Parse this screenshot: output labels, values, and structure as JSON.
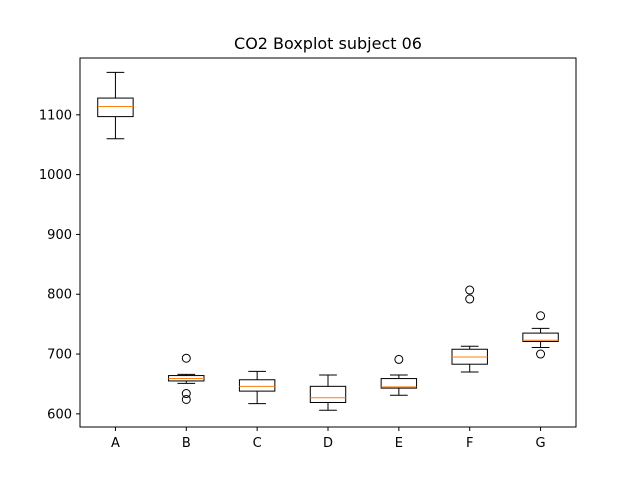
{
  "chart_data": {
    "type": "boxplot",
    "title": "CO2 Boxplot subject 06",
    "xlabel": "",
    "ylabel": "",
    "ylim": [
      578,
      1195
    ],
    "yticks": [
      600,
      700,
      800,
      900,
      1000,
      1100
    ],
    "categories": [
      "A",
      "B",
      "C",
      "D",
      "E",
      "F",
      "G"
    ],
    "boxes": [
      {
        "label": "A",
        "whisker_low": 1060,
        "q1": 1097,
        "median": 1114,
        "q3": 1128,
        "whisker_high": 1171,
        "outliers": []
      },
      {
        "label": "B",
        "whisker_low": 651,
        "q1": 655,
        "median": 659,
        "q3": 664,
        "whisker_high": 666,
        "outliers": [
          693,
          634,
          624
        ]
      },
      {
        "label": "C",
        "whisker_low": 617,
        "q1": 638,
        "median": 646,
        "q3": 657,
        "whisker_high": 671,
        "outliers": []
      },
      {
        "label": "D",
        "whisker_low": 606,
        "q1": 619,
        "median": 627,
        "q3": 646,
        "whisker_high": 665,
        "outliers": []
      },
      {
        "label": "E",
        "whisker_low": 631,
        "q1": 643,
        "median": 645,
        "q3": 659,
        "whisker_high": 665,
        "outliers": [
          691
        ]
      },
      {
        "label": "F",
        "whisker_low": 670,
        "q1": 683,
        "median": 695,
        "q3": 708,
        "whisker_high": 713,
        "outliers": [
          807,
          792
        ]
      },
      {
        "label": "G",
        "whisker_low": 711,
        "q1": 721,
        "median": 723,
        "q3": 735,
        "whisker_high": 743,
        "outliers": [
          764,
          700
        ]
      }
    ],
    "colors": {
      "box": "#000000",
      "median": "#ff7f0e",
      "outlier": "#000000"
    },
    "grid": false
  }
}
